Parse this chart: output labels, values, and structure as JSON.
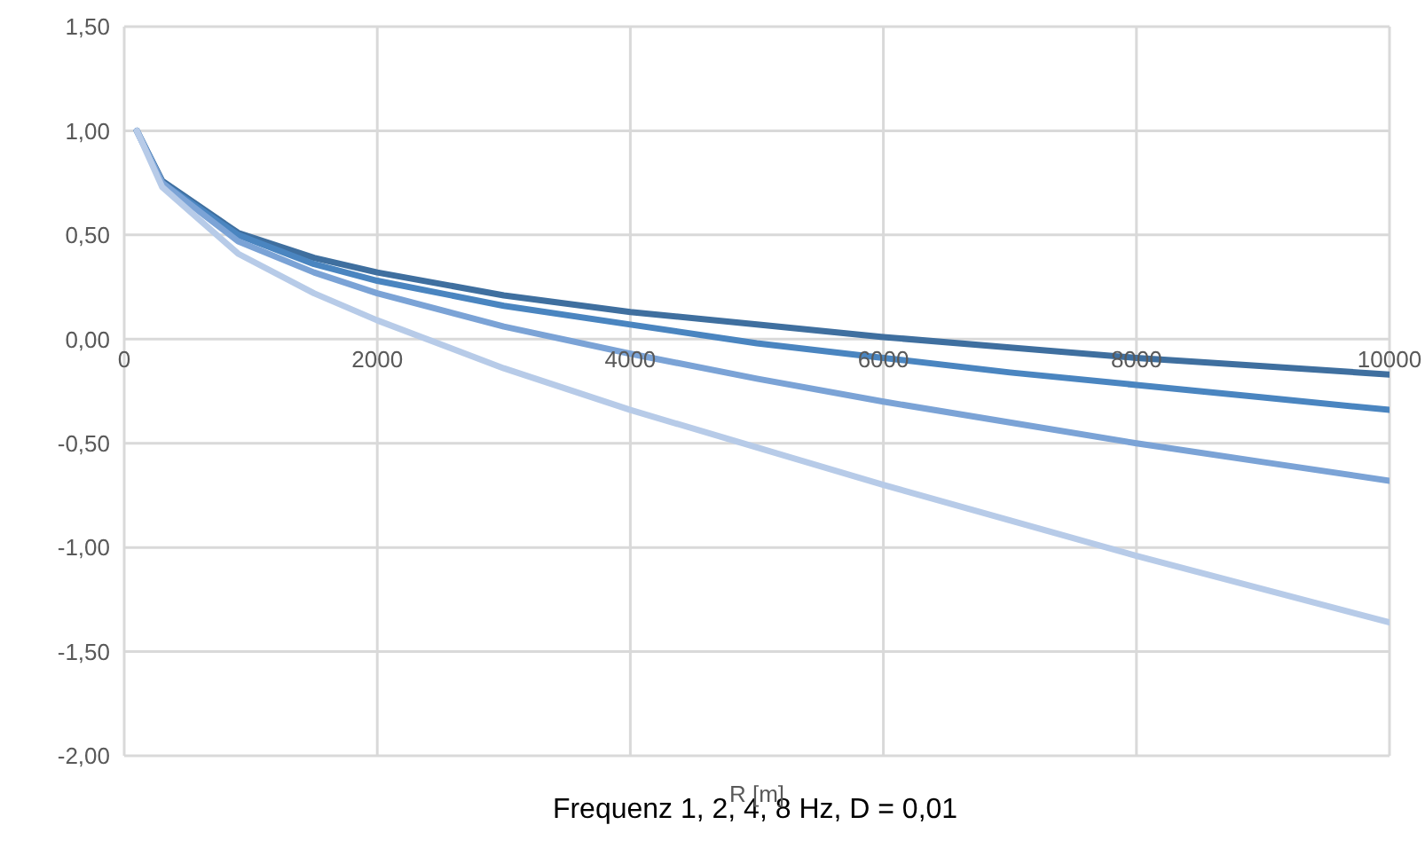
{
  "chart_data": {
    "type": "line",
    "title": "Frequenz 1, 2, 4, 8 Hz, D = 0,01",
    "xlabel": "R [m]",
    "x": [
      100,
      300,
      900,
      1500,
      2000,
      3000,
      4000,
      5000,
      6000,
      7000,
      8000,
      9000,
      10000
    ],
    "series": [
      {
        "color": "#3f6f9f",
        "values": [
          1.0,
          0.76,
          0.51,
          0.39,
          0.32,
          0.21,
          0.13,
          0.07,
          0.01,
          -0.04,
          -0.09,
          -0.13,
          -0.17
        ]
      },
      {
        "color": "#4a85c0",
        "values": [
          1.0,
          0.75,
          0.5,
          0.36,
          0.28,
          0.16,
          0.07,
          -0.02,
          -0.09,
          -0.16,
          -0.22,
          -0.28,
          -0.34
        ]
      },
      {
        "color": "#7ba3d6",
        "values": [
          1.0,
          0.75,
          0.47,
          0.32,
          0.22,
          0.06,
          -0.07,
          -0.19,
          -0.3,
          -0.4,
          -0.5,
          -0.59,
          -0.68
        ]
      },
      {
        "color": "#b7cbe8",
        "values": [
          1.0,
          0.73,
          0.41,
          0.22,
          0.09,
          -0.14,
          -0.34,
          -0.52,
          -0.7,
          -0.87,
          -1.04,
          -1.2,
          -1.36
        ]
      }
    ],
    "xlim": [
      0,
      10000
    ],
    "xticks": [
      0,
      2000,
      4000,
      6000,
      8000,
      10000
    ],
    "ylim": [
      -2,
      1.5
    ],
    "yticks": [
      {
        "value": -2,
        "label": "-2,00"
      },
      {
        "value": -1.5,
        "label": "-1,50"
      },
      {
        "value": -1,
        "label": "-1,00"
      },
      {
        "value": -0.5,
        "label": "-0,50"
      },
      {
        "value": 0,
        "label": "0,00"
      },
      {
        "value": 0.5,
        "label": "0,50"
      },
      {
        "value": 1,
        "label": "1,00"
      },
      {
        "value": 1.5,
        "label": "1,50"
      }
    ],
    "grid": true,
    "legend": false,
    "marker": "none",
    "line_style": "solid"
  }
}
